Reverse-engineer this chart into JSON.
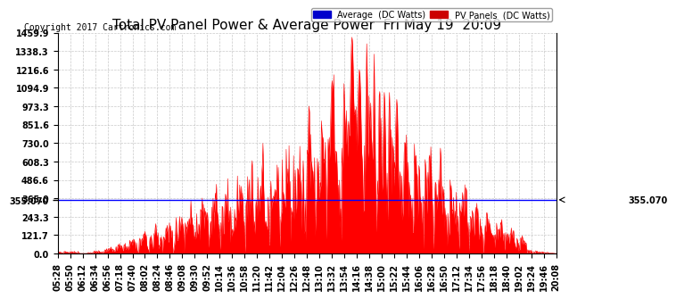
{
  "title": "Total PV Panel Power & Average Power  Fri May 19  20:09",
  "copyright": "Copyright 2017 Cartronics.com",
  "average_value": 355.07,
  "y_ticks": [
    0.0,
    121.7,
    243.3,
    365.0,
    486.6,
    608.3,
    730.0,
    851.6,
    973.3,
    1094.9,
    1216.6,
    1338.3,
    1459.9
  ],
  "y_max": 1459.9,
  "y_min": 0.0,
  "legend_labels": [
    "Average  (DC Watts)",
    "PV Panels  (DC Watts)"
  ],
  "fill_color": "#ff0000",
  "avg_line_color": "#0000ff",
  "background_color": "#ffffff",
  "grid_color": "#bbbbbb",
  "title_fontsize": 11,
  "tick_fontsize": 7,
  "copyright_fontsize": 7,
  "x_tick_labels": [
    "05:28",
    "05:50",
    "06:12",
    "06:34",
    "06:56",
    "07:18",
    "07:40",
    "08:02",
    "08:24",
    "08:46",
    "09:08",
    "09:30",
    "09:52",
    "10:14",
    "10:36",
    "10:58",
    "11:20",
    "11:42",
    "12:04",
    "12:26",
    "12:48",
    "13:10",
    "13:32",
    "13:54",
    "14:16",
    "14:38",
    "15:00",
    "15:22",
    "15:44",
    "16:06",
    "16:28",
    "16:50",
    "17:12",
    "17:34",
    "17:56",
    "18:18",
    "18:40",
    "19:02",
    "19:24",
    "19:46",
    "20:08"
  ]
}
